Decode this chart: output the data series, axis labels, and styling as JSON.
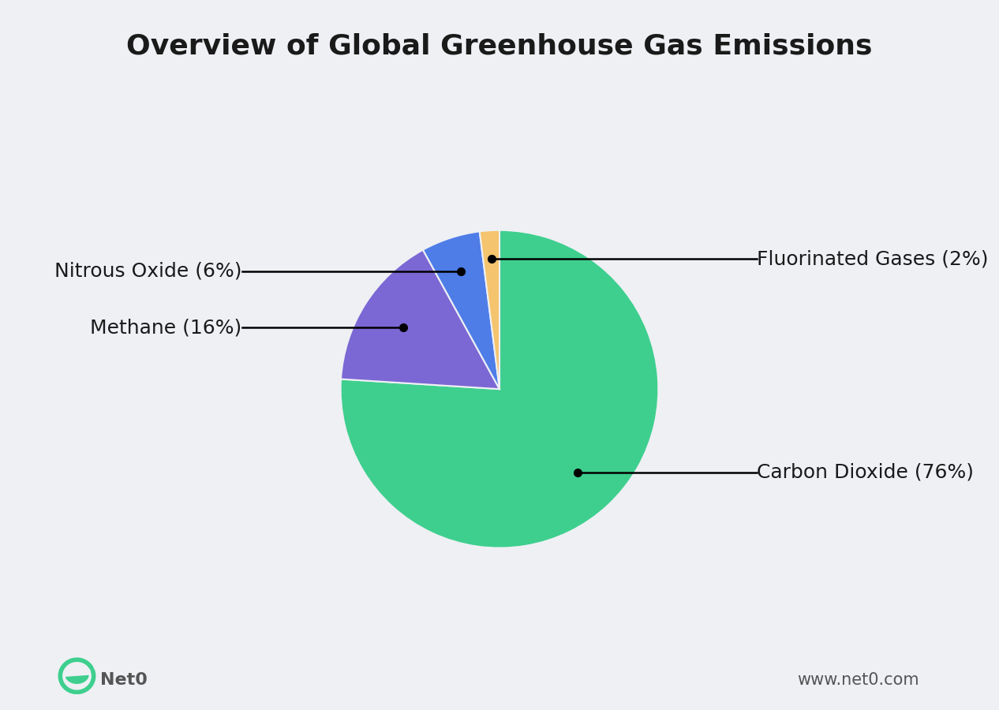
{
  "title": "Overview of Global Greenhouse Gas Emissions",
  "background_color": "#eef0f4",
  "slices": [
    {
      "label": "Carbon Dioxide",
      "pct": 76,
      "color": "#3ecf8e",
      "display": "Carbon Dioxide (76%)"
    },
    {
      "label": "Methane",
      "pct": 16,
      "color": "#7b68d4",
      "display": "Methane (16%)"
    },
    {
      "label": "Nitrous Oxide",
      "pct": 6,
      "color": "#4e7de8",
      "display": "Nitrous Oxide (6%)"
    },
    {
      "label": "Fluorinated Gases",
      "pct": 2,
      "color": "#f5c46e",
      "display": "Fluorinated Gases (2%)"
    }
  ],
  "start_angle": 90,
  "title_fontsize": 26,
  "label_fontsize": 18,
  "footer_left": "Net0",
  "footer_right": "www.net0.com",
  "footer_color": "#555555",
  "logo_color": "#3ecf8e",
  "text_color": "#1a1a1a"
}
